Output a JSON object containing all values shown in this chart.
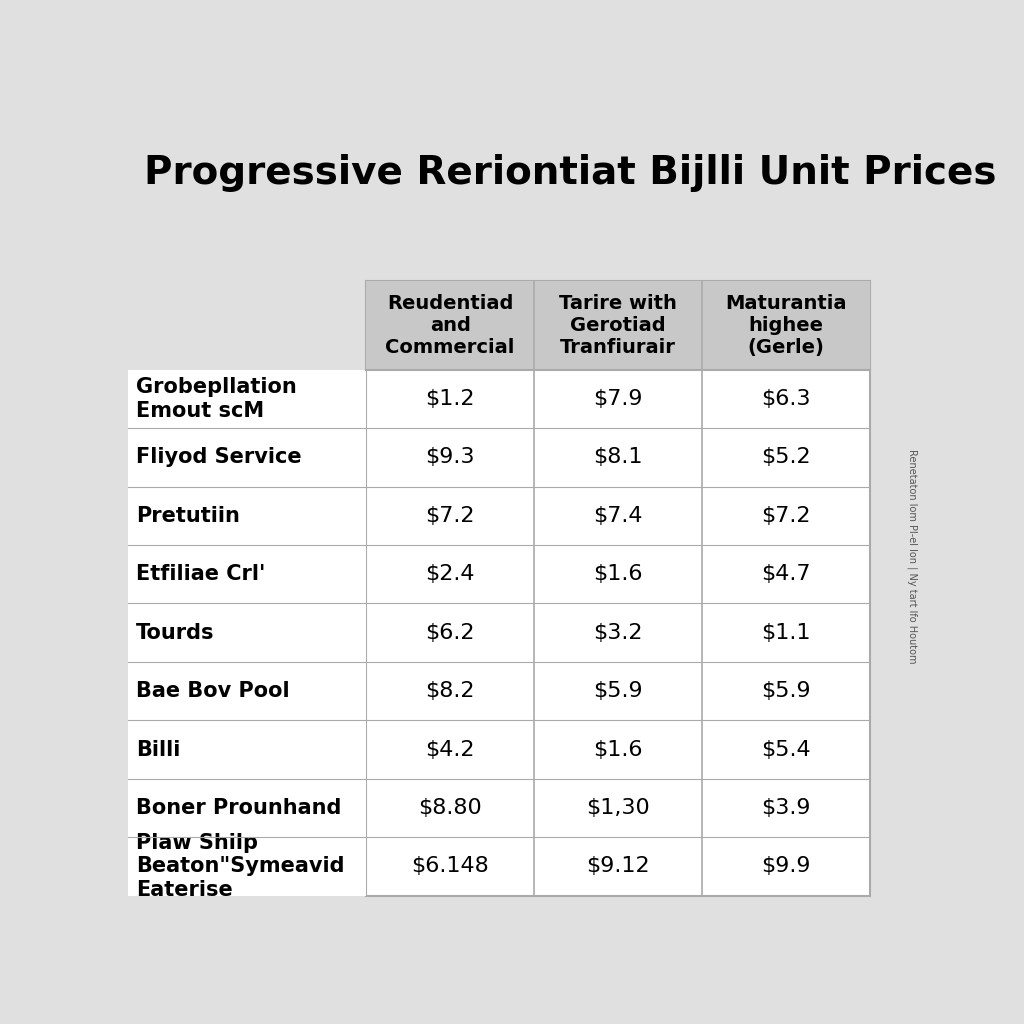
{
  "title": "Progressive Reriontiat Bijlli Unit Prices",
  "col_headers": [
    "Reudentiad\nand\nCommercial",
    "Tarire with\nGerotiad\nTranfiurair",
    "Maturantia\nhighee\n(Gerle)"
  ],
  "rows": [
    {
      "label": "Grobepllation\nEmout scM",
      "values": [
        "$1.2",
        "$7.9",
        "$6.3"
      ]
    },
    {
      "label": "Fliyod Service",
      "values": [
        "$9.3",
        "$8.1",
        "$5.2"
      ]
    },
    {
      "label": "Pretutiin",
      "values": [
        "$7.2",
        "$7.4",
        "$7.2"
      ]
    },
    {
      "label": "Etfiliae Crl'",
      "values": [
        "$2.4",
        "$1.6",
        "$4.7"
      ]
    },
    {
      "label": "Tourds",
      "values": [
        "$6.2",
        "$3.2",
        "$1.1"
      ]
    },
    {
      "label": "Bae Bov Pool",
      "values": [
        "$8.2",
        "$5.9",
        "$5.9"
      ]
    },
    {
      "label": "Billi",
      "values": [
        "$4.2",
        "$1.6",
        "$5.4"
      ]
    },
    {
      "label": "Boner Prounhand",
      "values": [
        "$8.80",
        "$1,30",
        "$3.9"
      ]
    },
    {
      "label": "Plaw Shilp\nBeaton\"Symeavid\nEaterise",
      "values": [
        "$6.148",
        "$9.12",
        "$9.9"
      ]
    }
  ],
  "background_color": "#e0e0e0",
  "table_bg": "#ffffff",
  "header_bg": "#c8c8c8",
  "title_fontsize": 28,
  "header_fontsize": 14,
  "cell_fontsize": 16,
  "label_fontsize": 15,
  "title_color": "#000000",
  "text_color": "#000000",
  "side_note": "Renetaton lom Pl-el lon | Ny tart lfo Houtom"
}
